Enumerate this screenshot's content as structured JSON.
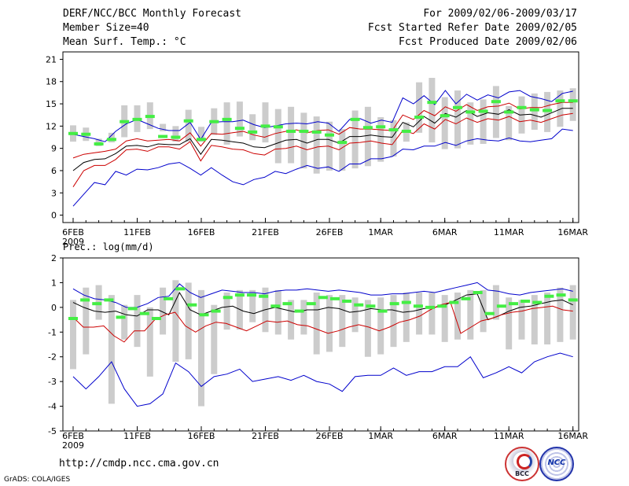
{
  "header": {
    "left": [
      "DERF/NCC/BCC Monthly Forecast",
      "Member Size=40",
      "Mean Surf. Temp.: °C"
    ],
    "right": [
      "For 2009/02/06-2009/03/17",
      "Fcst Started Refer Date 2009/02/05",
      "Fcst Produced Date 2009/02/06"
    ]
  },
  "footer": {
    "url": "http://cmdp.ncc.cma.gov.cn",
    "grads": "GrADS: COLA/IGES"
  },
  "logos": {
    "bcc": "BCC",
    "ncc": "NCC"
  },
  "colors": {
    "max": "#0000cc",
    "p75": "#cc0000",
    "mean": "#000000",
    "obs": "#44ee44",
    "box": "#cccccc"
  },
  "chart_data": [
    {
      "type": "line",
      "title": "Mean Surf. Temp.: °C",
      "ylim": [
        -1,
        22
      ],
      "yticks": [
        0,
        3,
        6,
        9,
        12,
        15,
        18,
        21
      ],
      "x_label_days": [
        0,
        5,
        10,
        15,
        20,
        24,
        29,
        34,
        39
      ],
      "x_labels": [
        "6FEB",
        "11FEB",
        "16FEB",
        "21FEB",
        "26FEB",
        "1MAR",
        "6MAR",
        "11MAR",
        "16MAR"
      ],
      "x_year": "2009",
      "days": 40,
      "series": [
        {
          "name": "max",
          "values": [
            10.9,
            10.6,
            10.3,
            9.9,
            11.3,
            12.3,
            12.9,
            12.3,
            11.7,
            11.4,
            11.4,
            12.5,
            10.2,
            12.5,
            12.6,
            12.6,
            12.8,
            12.2,
            11.8,
            12.0,
            12.3,
            12.4,
            12.3,
            12.6,
            12.4,
            11.3,
            12.9,
            13.0,
            12.4,
            12.8,
            12.5,
            15.8,
            15.0,
            16.1,
            14.9,
            16.8,
            15.0,
            16.3,
            15.5,
            16.2,
            15.8,
            16.6,
            16.8,
            16.0,
            15.7,
            15.3,
            16.4,
            16.7
          ]
        },
        {
          "name": "p75",
          "values": [
            7.7,
            8.2,
            8.4,
            8.6,
            8.9,
            10.0,
            10.3,
            10.0,
            10.1,
            10.2,
            10.0,
            11.1,
            9.3,
            11.0,
            10.9,
            11.1,
            11.3,
            10.8,
            10.5,
            11.0,
            11.3,
            11.5,
            11.1,
            11.4,
            11.5,
            10.9,
            11.8,
            11.6,
            11.6,
            11.5,
            11.4,
            13.5,
            12.9,
            14.1,
            13.4,
            14.6,
            14.0,
            14.9,
            14.1,
            14.6,
            14.7,
            15.1,
            14.3,
            14.5,
            14.5,
            14.9,
            15.2,
            15.2
          ]
        },
        {
          "name": "mean",
          "values": [
            6.0,
            7.1,
            7.5,
            7.6,
            8.3,
            9.3,
            9.4,
            9.2,
            9.6,
            9.5,
            9.5,
            10.3,
            8.2,
            10.2,
            10.1,
            9.9,
            9.7,
            9.2,
            9.1,
            9.6,
            10.1,
            10.2,
            9.7,
            10.2,
            10.2,
            9.7,
            10.6,
            10.6,
            10.8,
            10.6,
            10.5,
            12.5,
            11.9,
            13.3,
            12.4,
            13.7,
            13.2,
            14.1,
            13.3,
            13.8,
            13.6,
            14.2,
            13.5,
            13.6,
            13.2,
            13.8,
            14.4,
            14.4
          ]
        },
        {
          "name": "p25",
          "values": [
            3.8,
            6.0,
            6.7,
            6.7,
            7.5,
            8.8,
            8.9,
            8.6,
            9.2,
            9.2,
            8.9,
            9.9,
            7.3,
            9.4,
            9.2,
            8.9,
            8.8,
            8.3,
            8.1,
            8.9,
            9.0,
            9.3,
            8.8,
            9.2,
            9.3,
            8.8,
            9.7,
            9.8,
            10.0,
            9.7,
            9.5,
            11.4,
            11.0,
            12.3,
            11.6,
            12.9,
            12.3,
            13.1,
            12.5,
            13.0,
            12.8,
            13.3,
            12.6,
            12.8,
            12.5,
            13.0,
            13.5,
            13.7
          ]
        },
        {
          "name": "min",
          "values": [
            1.2,
            2.8,
            4.4,
            4.1,
            5.9,
            5.4,
            6.2,
            6.1,
            6.4,
            6.9,
            7.1,
            6.3,
            5.4,
            6.4,
            5.4,
            4.5,
            4.1,
            4.8,
            5.1,
            5.9,
            5.6,
            6.2,
            6.7,
            6.3,
            6.5,
            5.9,
            6.9,
            6.9,
            7.6,
            7.6,
            7.9,
            8.9,
            8.8,
            9.3,
            9.3,
            9.8,
            9.4,
            10.0,
            10.3,
            10.1,
            10.0,
            10.4,
            10.0,
            9.9,
            10.1,
            10.3,
            11.6,
            11.4
          ]
        },
        {
          "name": "obs",
          "values": [
            11.0,
            10.9,
            9.6,
            10.2,
            12.6,
            12.9,
            13.3,
            10.6,
            10.5,
            12.7,
            10.2,
            12.6,
            12.9,
            11.7,
            11.2,
            12.0,
            11.9,
            11.3,
            11.3,
            11.2,
            10.8,
            9.8,
            12.9,
            11.8,
            11.9,
            11.5,
            11.3,
            13.2,
            15.2,
            13.4,
            14.5,
            13.9,
            14.0,
            15.3,
            13.9,
            14.5,
            14.2,
            14.1,
            15.4,
            15.4
          ]
        }
      ],
      "box_lo": [
        9.9,
        10.0,
        9.3,
        9.8,
        10.5,
        11.2,
        11.6,
        11.3,
        9.9,
        9.9,
        9.9,
        10.8,
        9.5,
        10.6,
        10.1,
        9.8,
        7.0,
        7.0,
        6.3,
        5.6,
        6.0,
        6.0,
        6.3,
        6.6,
        7.2,
        7.9,
        9.9,
        11.1,
        9.8,
        8.9,
        9.0,
        9.5,
        9.6,
        10.4,
        10.1,
        11.0,
        11.5,
        11.2,
        11.9,
        12.7
      ],
      "box_hi": [
        12.1,
        11.8,
        10.3,
        11.1,
        14.8,
        14.8,
        15.2,
        12.3,
        12.0,
        14.2,
        11.9,
        14.4,
        15.2,
        15.3,
        13.6,
        15.2,
        14.3,
        14.6,
        13.8,
        13.3,
        12.6,
        11.6,
        14.1,
        14.6,
        13.2,
        12.8,
        12.5,
        17.9,
        18.5,
        15.9,
        16.8,
        15.2,
        15.6,
        17.4,
        14.7,
        16.0,
        16.4,
        16.6,
        16.8,
        17.1
      ]
    },
    {
      "type": "line",
      "title": "Prec.: log(mm/d)",
      "ylim": [
        -5,
        2
      ],
      "yticks": [
        -5,
        -4,
        -3,
        -2,
        -1,
        0,
        1,
        2
      ],
      "x_label_days": [
        0,
        5,
        10,
        15,
        20,
        24,
        29,
        34,
        39
      ],
      "x_labels": [
        "6FEB",
        "11FEB",
        "16FEB",
        "21FEB",
        "26FEB",
        "1MAR",
        "6MAR",
        "11MAR",
        "16MAR"
      ],
      "x_year": "2009",
      "days": 40,
      "series": [
        {
          "name": "max",
          "values": [
            0.75,
            0.5,
            0.35,
            0.3,
            0.2,
            0.0,
            0.0,
            0.15,
            0.4,
            0.45,
            0.95,
            0.6,
            0.4,
            0.55,
            0.7,
            0.65,
            0.6,
            0.6,
            0.55,
            0.65,
            0.7,
            0.7,
            0.75,
            0.7,
            0.65,
            0.7,
            0.65,
            0.6,
            0.5,
            0.5,
            0.55,
            0.55,
            0.6,
            0.65,
            0.6,
            0.7,
            0.8,
            0.9,
            1.0,
            0.7,
            0.65,
            0.55,
            0.5,
            0.6,
            0.65,
            0.7,
            0.75,
            0.65
          ]
        },
        {
          "name": "mean",
          "values": [
            0.2,
            0.0,
            -0.15,
            -0.2,
            -0.15,
            -0.3,
            -0.35,
            -0.1,
            -0.1,
            -0.3,
            0.6,
            -0.1,
            -0.3,
            -0.15,
            0.0,
            0.05,
            -0.15,
            -0.25,
            -0.1,
            0.0,
            -0.1,
            -0.2,
            -0.1,
            -0.1,
            0.0,
            -0.05,
            -0.2,
            -0.15,
            -0.05,
            -0.1,
            -0.1,
            -0.2,
            -0.15,
            -0.05,
            0.0,
            0.1,
            0.3,
            0.5,
            0.55,
            -0.5,
            -0.35,
            -0.15,
            0.0,
            0.05,
            0.15,
            0.25,
            0.3,
            0.1
          ]
        },
        {
          "name": "p25",
          "values": [
            -0.4,
            -0.8,
            -0.8,
            -0.75,
            -1.15,
            -1.4,
            -0.95,
            -0.95,
            -0.5,
            -0.3,
            -0.2,
            -0.75,
            -1.0,
            -0.75,
            -0.6,
            -0.65,
            -0.8,
            -0.95,
            -0.75,
            -0.55,
            -0.6,
            -0.55,
            -0.7,
            -0.75,
            -0.9,
            -1.05,
            -0.95,
            -0.8,
            -0.7,
            -0.8,
            -0.95,
            -0.8,
            -0.6,
            -0.5,
            -0.35,
            -0.1,
            0.1,
            0.2,
            -1.05,
            -0.8,
            -0.55,
            -0.45,
            -0.3,
            -0.2,
            -0.15,
            -0.05,
            0.0,
            0.05,
            -0.1,
            -0.15
          ]
        },
        {
          "name": "min",
          "values": [
            -2.8,
            -3.3,
            -2.8,
            -2.2,
            -3.3,
            -4.0,
            -3.9,
            -3.5,
            -2.25,
            -2.6,
            -3.2,
            -2.8,
            -2.7,
            -2.5,
            -3.0,
            -2.9,
            -2.8,
            -2.95,
            -2.75,
            -3.0,
            -3.1,
            -3.4,
            -2.8,
            -2.75,
            -2.75,
            -2.45,
            -2.75,
            -2.6,
            -2.6,
            -2.4,
            -2.4,
            -2.0,
            -2.85,
            -2.65,
            -2.4,
            -2.65,
            -2.2,
            -2.0,
            -1.85,
            -2.0
          ]
        },
        {
          "name": "obs",
          "values": [
            -0.45,
            0.3,
            0.15,
            0.3,
            -0.4,
            -0.05,
            -0.25,
            -0.45,
            0.35,
            0.75,
            0.1,
            -0.3,
            -0.15,
            0.4,
            0.5,
            0.5,
            0.45,
            0.05,
            0.15,
            -0.15,
            0.15,
            0.4,
            0.35,
            0.25,
            0.1,
            0.05,
            -0.15,
            0.15,
            0.2,
            0.05,
            0.0,
            0.05,
            0.2,
            0.35,
            0.6,
            -0.25,
            0.05,
            0.15,
            0.25,
            0.2,
            0.45,
            0.5,
            0.3
          ]
        }
      ],
      "box_lo": [
        -2.5,
        -1.9,
        -0.5,
        -3.9,
        -1.3,
        -1.6,
        -2.8,
        -1.1,
        -2.2,
        -2.1,
        -4.0,
        -2.7,
        -0.9,
        -0.9,
        -0.6,
        -1.0,
        -1.1,
        -1.3,
        -1.1,
        -1.9,
        -1.8,
        -1.6,
        -1.0,
        -2.0,
        -1.9,
        -1.6,
        -1.4,
        -1.1,
        -1.1,
        -1.4,
        -1.3,
        -1.3,
        -1.0,
        -0.5,
        -1.7,
        -1.3,
        -1.5,
        -1.5,
        -1.4,
        -1.3
      ],
      "box_hi": [
        0.3,
        0.8,
        0.9,
        0.5,
        0.1,
        0.5,
        0.0,
        0.8,
        1.1,
        1.0,
        0.7,
        0.1,
        0.6,
        0.7,
        0.7,
        0.8,
        0.7,
        0.3,
        0.3,
        0.6,
        0.5,
        0.5,
        0.4,
        0.3,
        0.4,
        0.5,
        0.6,
        0.6,
        0.6,
        0.5,
        0.6,
        0.7,
        0.7,
        0.9,
        0.4,
        0.3,
        0.5,
        0.6,
        0.8,
        0.9
      ]
    }
  ]
}
